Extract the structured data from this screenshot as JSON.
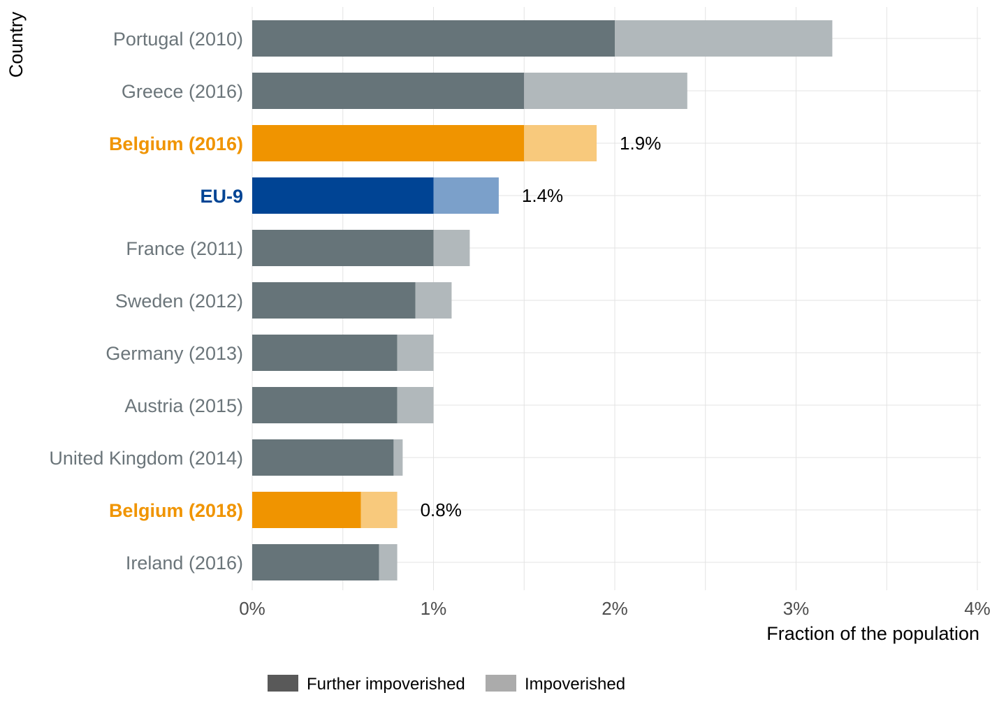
{
  "chart_data": {
    "type": "bar",
    "orientation": "horizontal",
    "stacked": true,
    "title": "",
    "xlabel": "Fraction of the population",
    "ylabel": "Country",
    "xlim": [
      0,
      4
    ],
    "x_ticks": [
      "0%",
      "1%",
      "2%",
      "3%",
      "4%"
    ],
    "x_tick_values": [
      0,
      1,
      2,
      3,
      4
    ],
    "grid": true,
    "legend_position": "bottom",
    "categories": [
      "Portugal (2010)",
      "Greece (2016)",
      "Belgium (2016)",
      "EU-9",
      "France (2011)",
      "Sweden (2012)",
      "Germany (2013)",
      "Austria (2015)",
      "United Kingdom (2014)",
      "Belgium (2018)",
      "Ireland (2016)"
    ],
    "category_highlight": [
      "none",
      "none",
      "orange",
      "blue",
      "none",
      "none",
      "none",
      "none",
      "none",
      "orange",
      "none"
    ],
    "series": [
      {
        "name": "Further impoverished",
        "legend_color": "#595959",
        "values": [
          2.0,
          1.5,
          1.5,
          1.0,
          1.0,
          0.9,
          0.8,
          0.8,
          0.78,
          0.6,
          0.7
        ]
      },
      {
        "name": "Impoverished",
        "legend_color": "#ababab",
        "values": [
          1.2,
          0.9,
          0.4,
          0.36,
          0.2,
          0.2,
          0.2,
          0.2,
          0.05,
          0.2,
          0.1
        ]
      }
    ],
    "totals": [
      3.2,
      2.4,
      1.9,
      1.36,
      1.2,
      1.1,
      1.0,
      1.0,
      0.83,
      0.8,
      0.8
    ],
    "value_labels": [
      "",
      "",
      "1.9%",
      "1.4%",
      "",
      "",
      "",
      "",
      "",
      "0.8%",
      ""
    ],
    "colors": {
      "default_dark": "#667479",
      "default_light": "#b1b8bb",
      "orange_dark": "#f09400",
      "orange_light": "#f8c97c",
      "blue_dark": "#004494",
      "blue_light": "#7ba0ca"
    }
  }
}
